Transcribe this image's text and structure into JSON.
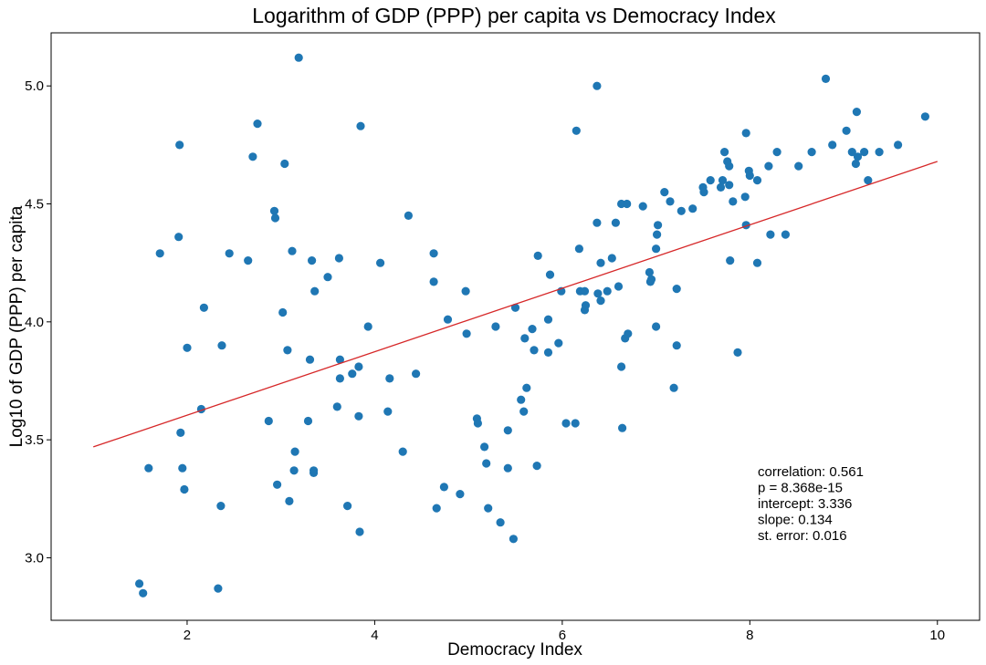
{
  "chart_data": {
    "type": "scatter",
    "title": "Logarithm of GDP (PPP) per capita vs Democracy Index",
    "xlabel": "Democracy Index",
    "ylabel": "Log10 of GDP (PPP) per capita",
    "xlim": [
      0.55,
      10.45
    ],
    "ylim": [
      2.735,
      5.225
    ],
    "xticks": [
      2,
      4,
      6,
      8,
      10
    ],
    "xtick_labels": [
      "2",
      "4",
      "6",
      "8",
      "10"
    ],
    "yticks": [
      3.0,
      3.5,
      4.0,
      4.5,
      5.0
    ],
    "ytick_labels": [
      "3.0",
      "3.5",
      "4.0",
      "4.5",
      "5.0"
    ],
    "grid": false,
    "point_color": "#1f77b4",
    "line_color": "#d62728",
    "regression_line": {
      "x": [
        1.0,
        10.0
      ],
      "y": [
        3.47,
        4.68
      ]
    },
    "annotations": [
      "correlation: 0.561",
      "p = 8.368e-15",
      "intercept: 3.336",
      "slope: 0.134",
      "st. error: 0.016"
    ],
    "points": [
      [
        1.49,
        2.89
      ],
      [
        1.53,
        2.85
      ],
      [
        1.59,
        3.38
      ],
      [
        1.71,
        4.29
      ],
      [
        1.92,
        4.75
      ],
      [
        1.91,
        4.36
      ],
      [
        1.93,
        3.53
      ],
      [
        1.95,
        3.38
      ],
      [
        1.97,
        3.29
      ],
      [
        2.0,
        3.89
      ],
      [
        2.15,
        3.63
      ],
      [
        2.18,
        4.06
      ],
      [
        2.33,
        2.87
      ],
      [
        2.36,
        3.22
      ],
      [
        2.37,
        3.9
      ],
      [
        2.45,
        4.29
      ],
      [
        2.65,
        4.26
      ],
      [
        2.7,
        4.7
      ],
      [
        2.75,
        4.84
      ],
      [
        2.87,
        3.58
      ],
      [
        2.93,
        4.47
      ],
      [
        2.94,
        4.44
      ],
      [
        2.96,
        3.31
      ],
      [
        3.02,
        4.04
      ],
      [
        3.04,
        4.67
      ],
      [
        3.07,
        3.88
      ],
      [
        3.09,
        3.24
      ],
      [
        3.12,
        4.3
      ],
      [
        3.14,
        3.37
      ],
      [
        3.15,
        3.45
      ],
      [
        3.19,
        5.12
      ],
      [
        3.29,
        3.58
      ],
      [
        3.31,
        3.84
      ],
      [
        3.33,
        4.26
      ],
      [
        3.35,
        3.36
      ],
      [
        3.35,
        3.37
      ],
      [
        3.36,
        4.13
      ],
      [
        3.5,
        4.19
      ],
      [
        3.6,
        3.64
      ],
      [
        3.62,
        4.27
      ],
      [
        3.63,
        3.84
      ],
      [
        3.63,
        3.76
      ],
      [
        3.71,
        3.22
      ],
      [
        3.76,
        3.78
      ],
      [
        3.83,
        3.6
      ],
      [
        3.83,
        3.81
      ],
      [
        3.84,
        3.11
      ],
      [
        3.85,
        4.83
      ],
      [
        3.93,
        3.98
      ],
      [
        4.06,
        4.25
      ],
      [
        4.14,
        3.62
      ],
      [
        4.16,
        3.76
      ],
      [
        4.3,
        3.45
      ],
      [
        4.36,
        4.45
      ],
      [
        4.44,
        3.78
      ],
      [
        4.63,
        4.29
      ],
      [
        4.63,
        4.17
      ],
      [
        4.66,
        3.21
      ],
      [
        4.74,
        3.3
      ],
      [
        4.78,
        4.01
      ],
      [
        4.91,
        3.27
      ],
      [
        4.97,
        4.13
      ],
      [
        4.98,
        3.95
      ],
      [
        5.09,
        3.59
      ],
      [
        5.1,
        3.57
      ],
      [
        5.17,
        3.47
      ],
      [
        5.19,
        3.4
      ],
      [
        5.21,
        3.21
      ],
      [
        5.29,
        3.98
      ],
      [
        5.34,
        3.15
      ],
      [
        5.42,
        3.54
      ],
      [
        5.42,
        3.38
      ],
      [
        5.48,
        3.08
      ],
      [
        5.5,
        4.06
      ],
      [
        5.56,
        3.67
      ],
      [
        5.59,
        3.62
      ],
      [
        5.6,
        3.93
      ],
      [
        5.62,
        3.72
      ],
      [
        5.68,
        3.97
      ],
      [
        5.7,
        3.88
      ],
      [
        5.73,
        3.39
      ],
      [
        5.74,
        4.28
      ],
      [
        5.85,
        4.01
      ],
      [
        5.85,
        3.87
      ],
      [
        5.87,
        4.2
      ],
      [
        5.96,
        3.91
      ],
      [
        5.99,
        4.13
      ],
      [
        6.04,
        3.57
      ],
      [
        6.14,
        3.57
      ],
      [
        6.15,
        4.81
      ],
      [
        6.18,
        4.31
      ],
      [
        6.19,
        4.13
      ],
      [
        6.24,
        4.13
      ],
      [
        6.24,
        4.05
      ],
      [
        6.25,
        4.07
      ],
      [
        6.37,
        5.0
      ],
      [
        6.37,
        4.42
      ],
      [
        6.38,
        4.12
      ],
      [
        6.41,
        4.09
      ],
      [
        6.41,
        4.25
      ],
      [
        6.48,
        4.13
      ],
      [
        6.53,
        4.27
      ],
      [
        6.57,
        4.42
      ],
      [
        6.6,
        4.15
      ],
      [
        6.63,
        4.5
      ],
      [
        6.63,
        3.81
      ],
      [
        6.64,
        3.55
      ],
      [
        6.67,
        3.93
      ],
      [
        6.69,
        4.5
      ],
      [
        6.7,
        3.95
      ],
      [
        6.86,
        4.49
      ],
      [
        6.93,
        4.21
      ],
      [
        6.94,
        4.17
      ],
      [
        6.95,
        4.18
      ],
      [
        7.0,
        4.31
      ],
      [
        7.0,
        3.98
      ],
      [
        7.01,
        4.37
      ],
      [
        7.02,
        4.41
      ],
      [
        7.09,
        4.55
      ],
      [
        7.15,
        4.51
      ],
      [
        7.19,
        3.72
      ],
      [
        7.22,
        3.9
      ],
      [
        7.22,
        4.14
      ],
      [
        7.27,
        4.47
      ],
      [
        7.39,
        4.48
      ],
      [
        7.5,
        4.57
      ],
      [
        7.51,
        4.55
      ],
      [
        7.58,
        4.6
      ],
      [
        7.69,
        4.57
      ],
      [
        7.71,
        4.6
      ],
      [
        7.73,
        4.72
      ],
      [
        7.76,
        4.68
      ],
      [
        7.78,
        4.58
      ],
      [
        7.78,
        4.66
      ],
      [
        7.79,
        4.26
      ],
      [
        7.82,
        4.51
      ],
      [
        7.87,
        3.87
      ],
      [
        7.95,
        4.53
      ],
      [
        7.96,
        4.8
      ],
      [
        7.96,
        4.41
      ],
      [
        7.99,
        4.64
      ],
      [
        8.0,
        4.62
      ],
      [
        8.08,
        4.25
      ],
      [
        8.08,
        4.6
      ],
      [
        8.2,
        4.66
      ],
      [
        8.22,
        4.37
      ],
      [
        8.29,
        4.72
      ],
      [
        8.38,
        4.37
      ],
      [
        8.52,
        4.66
      ],
      [
        8.66,
        4.72
      ],
      [
        8.81,
        5.03
      ],
      [
        8.88,
        4.75
      ],
      [
        9.03,
        4.81
      ],
      [
        9.09,
        4.72
      ],
      [
        9.13,
        4.67
      ],
      [
        9.14,
        4.89
      ],
      [
        9.15,
        4.7
      ],
      [
        9.22,
        4.72
      ],
      [
        9.26,
        4.6
      ],
      [
        9.38,
        4.72
      ],
      [
        9.58,
        4.75
      ],
      [
        9.87,
        4.87
      ]
    ]
  }
}
